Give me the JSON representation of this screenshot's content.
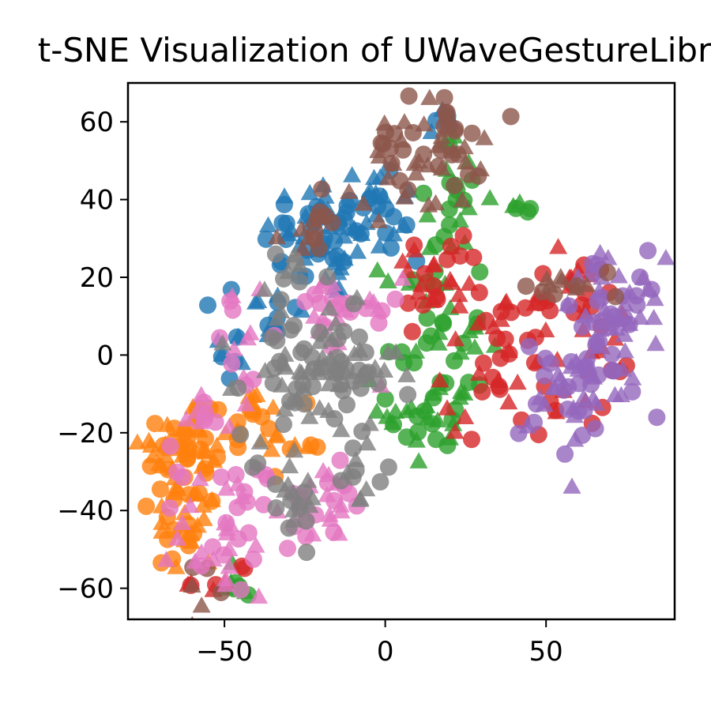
{
  "chart_data": {
    "type": "scatter",
    "title": "t-SNE Visualization of UWaveGestureLibrary",
    "xlabel": "",
    "ylabel": "",
    "xlim": [
      -80,
      90
    ],
    "ylim": [
      -68,
      70
    ],
    "xticks": [
      -50,
      0,
      50
    ],
    "xtick_labels": [
      "−50",
      "0",
      "50"
    ],
    "yticks": [
      -60,
      -40,
      -20,
      0,
      20,
      40,
      60
    ],
    "ytick_labels": [
      "−60",
      "−40",
      "−20",
      "0",
      "20",
      "40",
      "60"
    ],
    "grid": false,
    "legend": "none",
    "markers": [
      "circle",
      "triangle"
    ],
    "series": [
      {
        "color": "#1f77b4",
        "clusters": [
          {
            "cx": -18,
            "cy": 30,
            "sx": 10,
            "sy": 8,
            "n": 60
          },
          {
            "cx": -4,
            "cy": 38,
            "sx": 8,
            "sy": 6,
            "n": 25
          },
          {
            "cx": -35,
            "cy": 10,
            "sx": 5,
            "sy": 6,
            "n": 15
          },
          {
            "cx": -50,
            "cy": 0,
            "sx": 5,
            "sy": 5,
            "n": 8
          },
          {
            "cx": 18,
            "cy": 60,
            "sx": 3,
            "sy": 2,
            "n": 5
          }
        ]
      },
      {
        "color": "#ff7f0e",
        "clusters": [
          {
            "cx": -62,
            "cy": -25,
            "sx": 7,
            "sy": 8,
            "n": 60
          },
          {
            "cx": -62,
            "cy": -45,
            "sx": 5,
            "sy": 6,
            "n": 25
          },
          {
            "cx": -42,
            "cy": -18,
            "sx": 5,
            "sy": 5,
            "n": 15
          },
          {
            "cx": -28,
            "cy": -22,
            "sx": 4,
            "sy": 4,
            "n": 10
          }
        ]
      },
      {
        "color": "#2ca02c",
        "clusters": [
          {
            "cx": 15,
            "cy": 5,
            "sx": 8,
            "sy": 14,
            "n": 45
          },
          {
            "cx": 15,
            "cy": -15,
            "sx": 7,
            "sy": 8,
            "n": 25
          },
          {
            "cx": 20,
            "cy": 40,
            "sx": 6,
            "sy": 8,
            "n": 20
          },
          {
            "cx": -45,
            "cy": -58,
            "sx": 3,
            "sy": 3,
            "n": 8
          },
          {
            "cx": 42,
            "cy": 38,
            "sx": 3,
            "sy": 3,
            "n": 5
          }
        ]
      },
      {
        "color": "#d62728",
        "clusters": [
          {
            "cx": 38,
            "cy": -2,
            "sx": 10,
            "sy": 10,
            "n": 45
          },
          {
            "cx": 55,
            "cy": 15,
            "sx": 10,
            "sy": 5,
            "n": 25
          },
          {
            "cx": 15,
            "cy": 20,
            "sx": 8,
            "sy": 6,
            "n": 25
          },
          {
            "cx": -50,
            "cy": -58,
            "sx": 5,
            "sy": 3,
            "n": 8
          },
          {
            "cx": 70,
            "cy": -5,
            "sx": 6,
            "sy": 5,
            "n": 10
          }
        ]
      },
      {
        "color": "#9467bd",
        "clusters": [
          {
            "cx": 70,
            "cy": 5,
            "sx": 8,
            "sy": 10,
            "n": 50
          },
          {
            "cx": 58,
            "cy": -12,
            "sx": 8,
            "sy": 8,
            "n": 35
          },
          {
            "cx": 75,
            "cy": 15,
            "sx": 5,
            "sy": 5,
            "n": 15
          }
        ]
      },
      {
        "color": "#8c564b",
        "clusters": [
          {
            "cx": 12,
            "cy": 52,
            "sx": 9,
            "sy": 7,
            "n": 55
          },
          {
            "cx": -20,
            "cy": 35,
            "sx": 6,
            "sy": 5,
            "n": 15
          },
          {
            "cx": 60,
            "cy": 18,
            "sx": 8,
            "sy": 3,
            "n": 12
          },
          {
            "cx": -58,
            "cy": -58,
            "sx": 4,
            "sy": 3,
            "n": 6
          }
        ]
      },
      {
        "color": "#e377c2",
        "clusters": [
          {
            "cx": -48,
            "cy": -45,
            "sx": 8,
            "sy": 9,
            "n": 45
          },
          {
            "cx": -15,
            "cy": 10,
            "sx": 10,
            "sy": 6,
            "n": 30
          },
          {
            "cx": -20,
            "cy": -38,
            "sx": 8,
            "sy": 5,
            "n": 25
          },
          {
            "cx": -45,
            "cy": 0,
            "sx": 5,
            "sy": 8,
            "n": 12
          },
          {
            "cx": -58,
            "cy": -15,
            "sx": 5,
            "sy": 4,
            "n": 10
          }
        ]
      },
      {
        "color": "#7f7f7f",
        "clusters": [
          {
            "cx": -20,
            "cy": -5,
            "sx": 12,
            "sy": 8,
            "n": 90
          },
          {
            "cx": -30,
            "cy": -35,
            "sx": 6,
            "sy": 6,
            "n": 20
          },
          {
            "cx": -10,
            "cy": -32,
            "sx": 5,
            "sy": 5,
            "n": 12
          },
          {
            "cx": -25,
            "cy": 22,
            "sx": 6,
            "sy": 5,
            "n": 10
          }
        ]
      }
    ]
  }
}
